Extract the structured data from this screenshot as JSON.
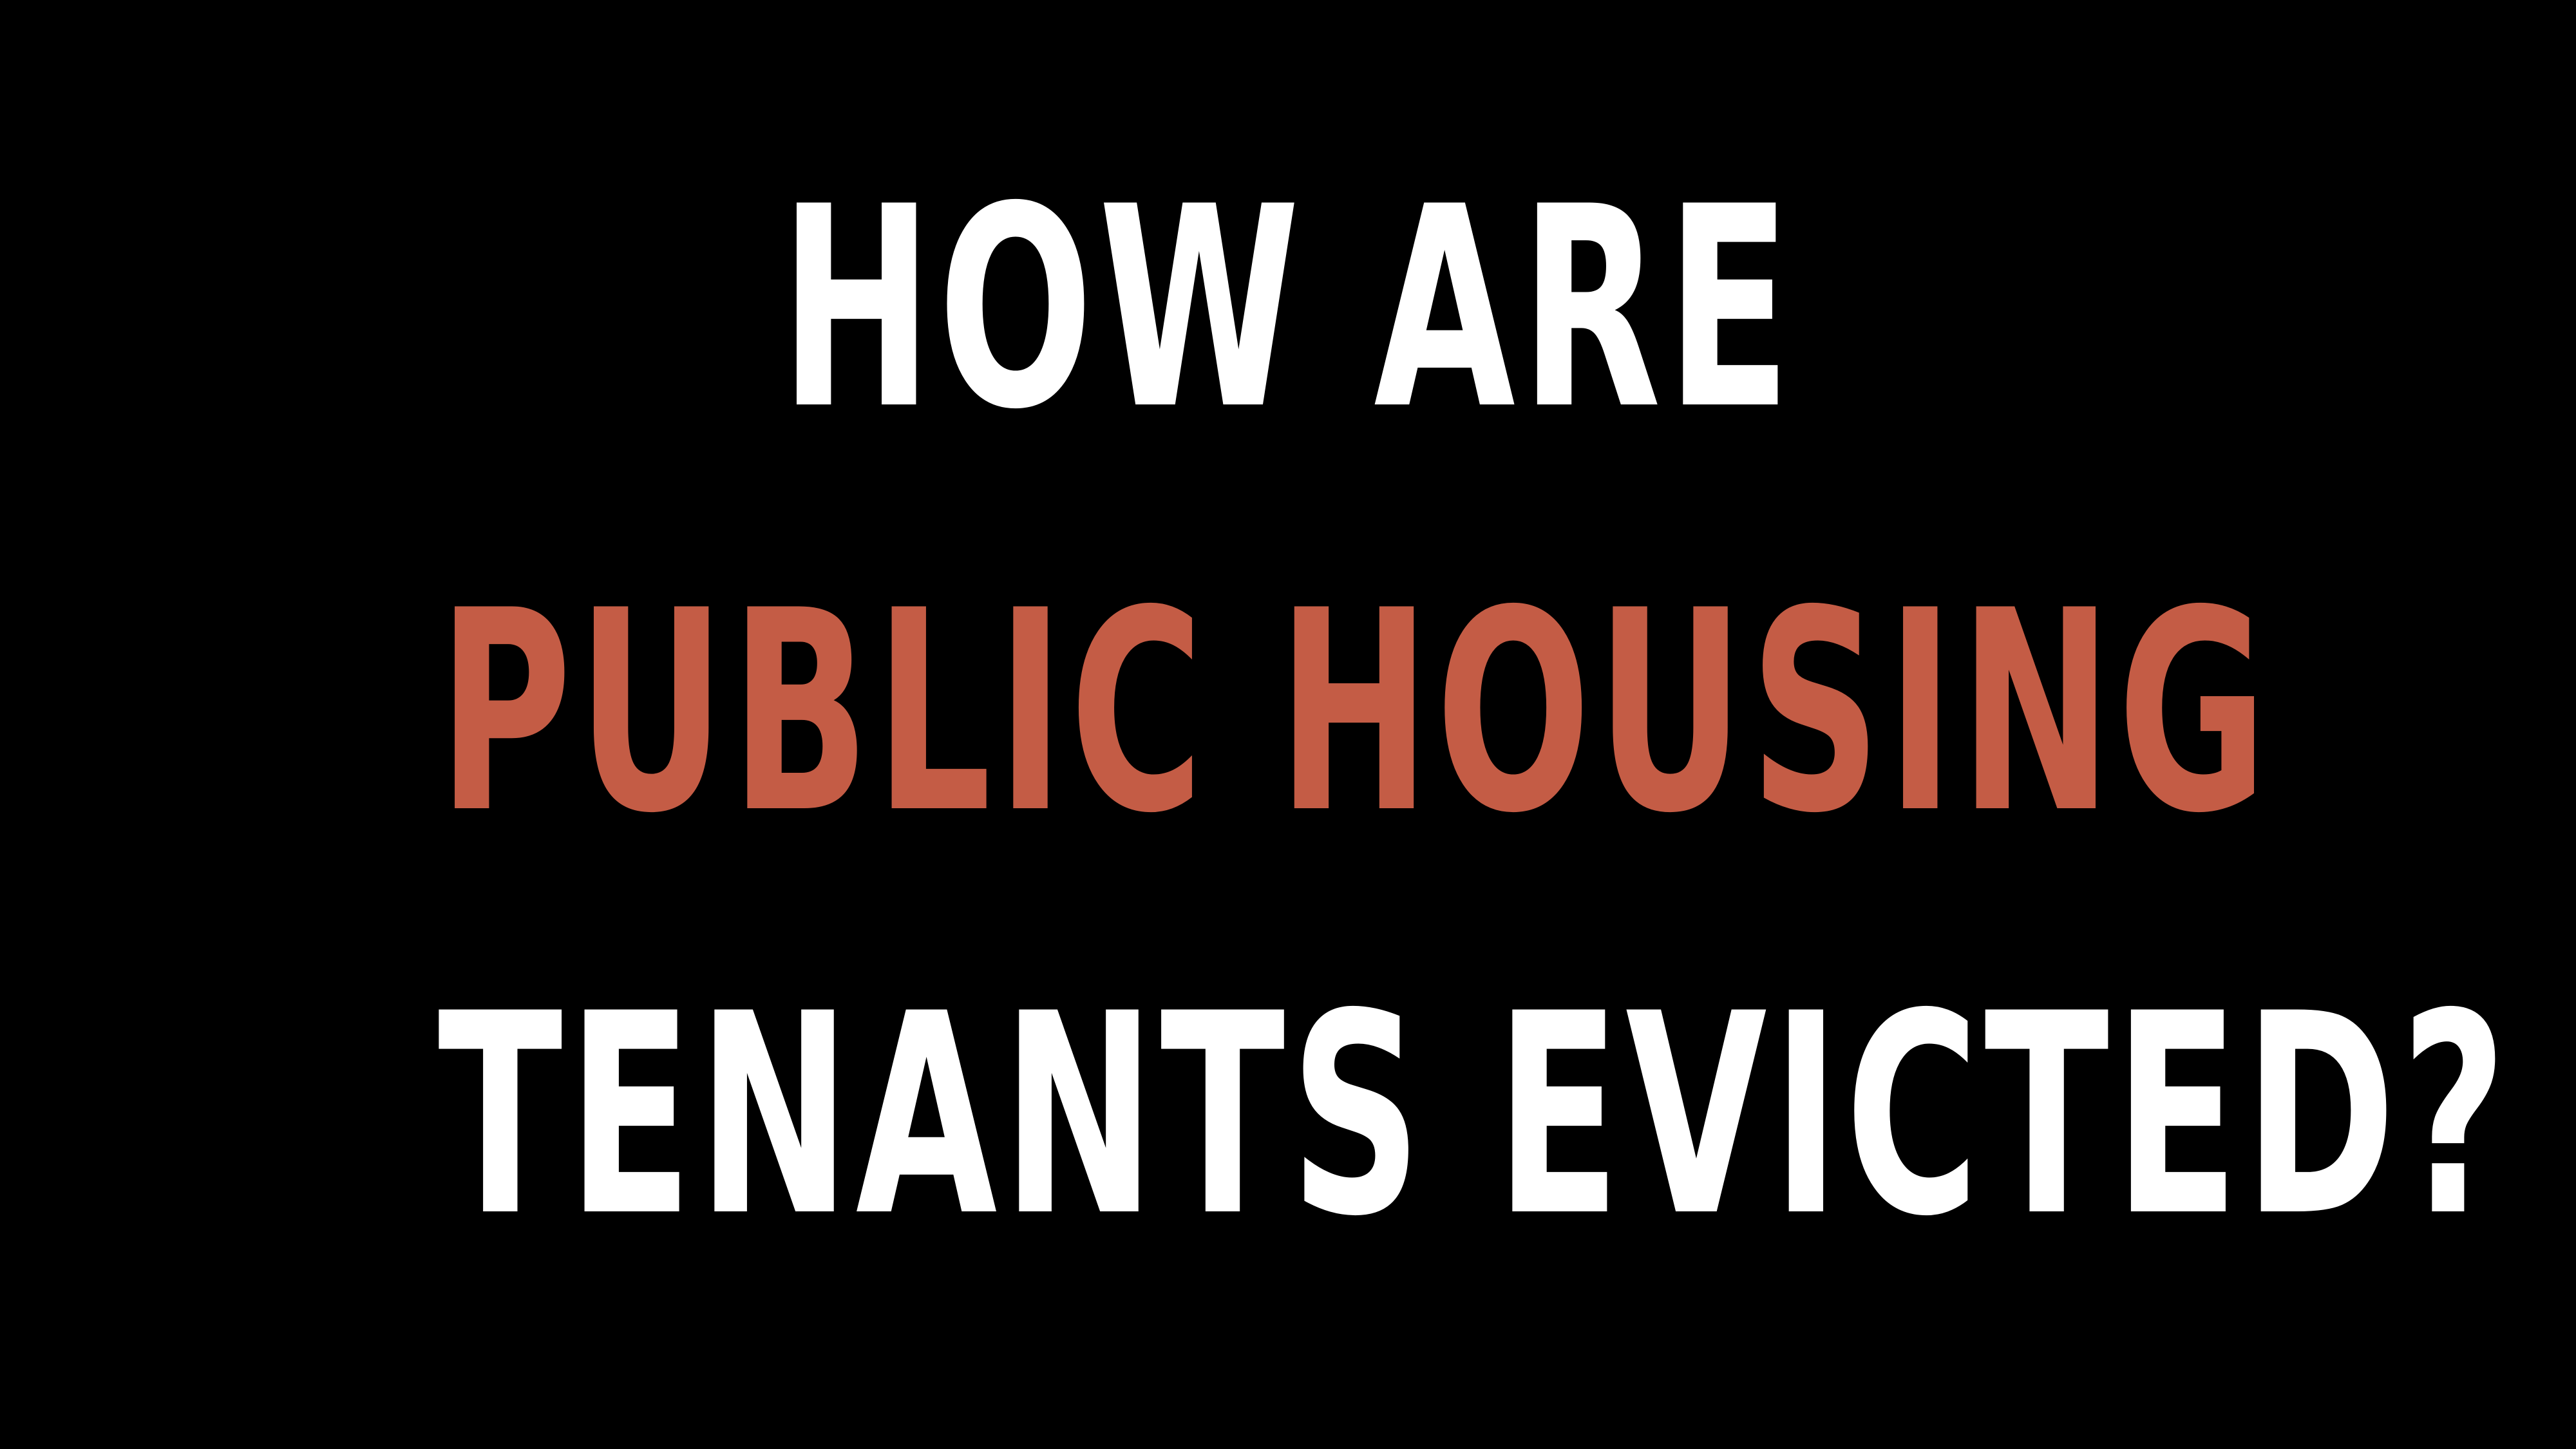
{
  "headline": {
    "line1": "HOW ARE",
    "line2": "PUBLIC HOUSING",
    "line3": "TENANTS EVICTED?"
  },
  "colors": {
    "background": "#000000",
    "primary_text": "#FFFFFF",
    "accent_text": "#C45C45"
  }
}
